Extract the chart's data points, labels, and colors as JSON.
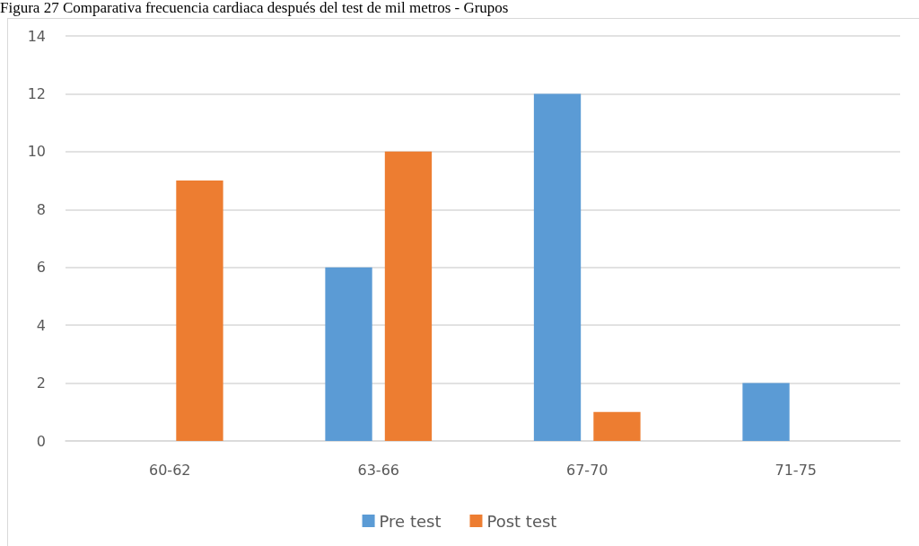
{
  "chart_data": {
    "type": "bar",
    "title": "Figura 27 Comparativa frecuencia cardiaca después del test de mil metros - Grupos",
    "categories": [
      "60-62",
      "63-66",
      "67-70",
      "71-75"
    ],
    "series": [
      {
        "name": "Pre test",
        "color": "#5b9bd5",
        "values": [
          0,
          6,
          12,
          2
        ]
      },
      {
        "name": "Post test",
        "color": "#ed7d31",
        "values": [
          9,
          10,
          1,
          0
        ]
      }
    ],
    "ylim": [
      0,
      14
    ],
    "yticks": [
      0,
      2,
      4,
      6,
      8,
      10,
      12,
      14
    ],
    "grid": "y",
    "legend": "bottom"
  }
}
